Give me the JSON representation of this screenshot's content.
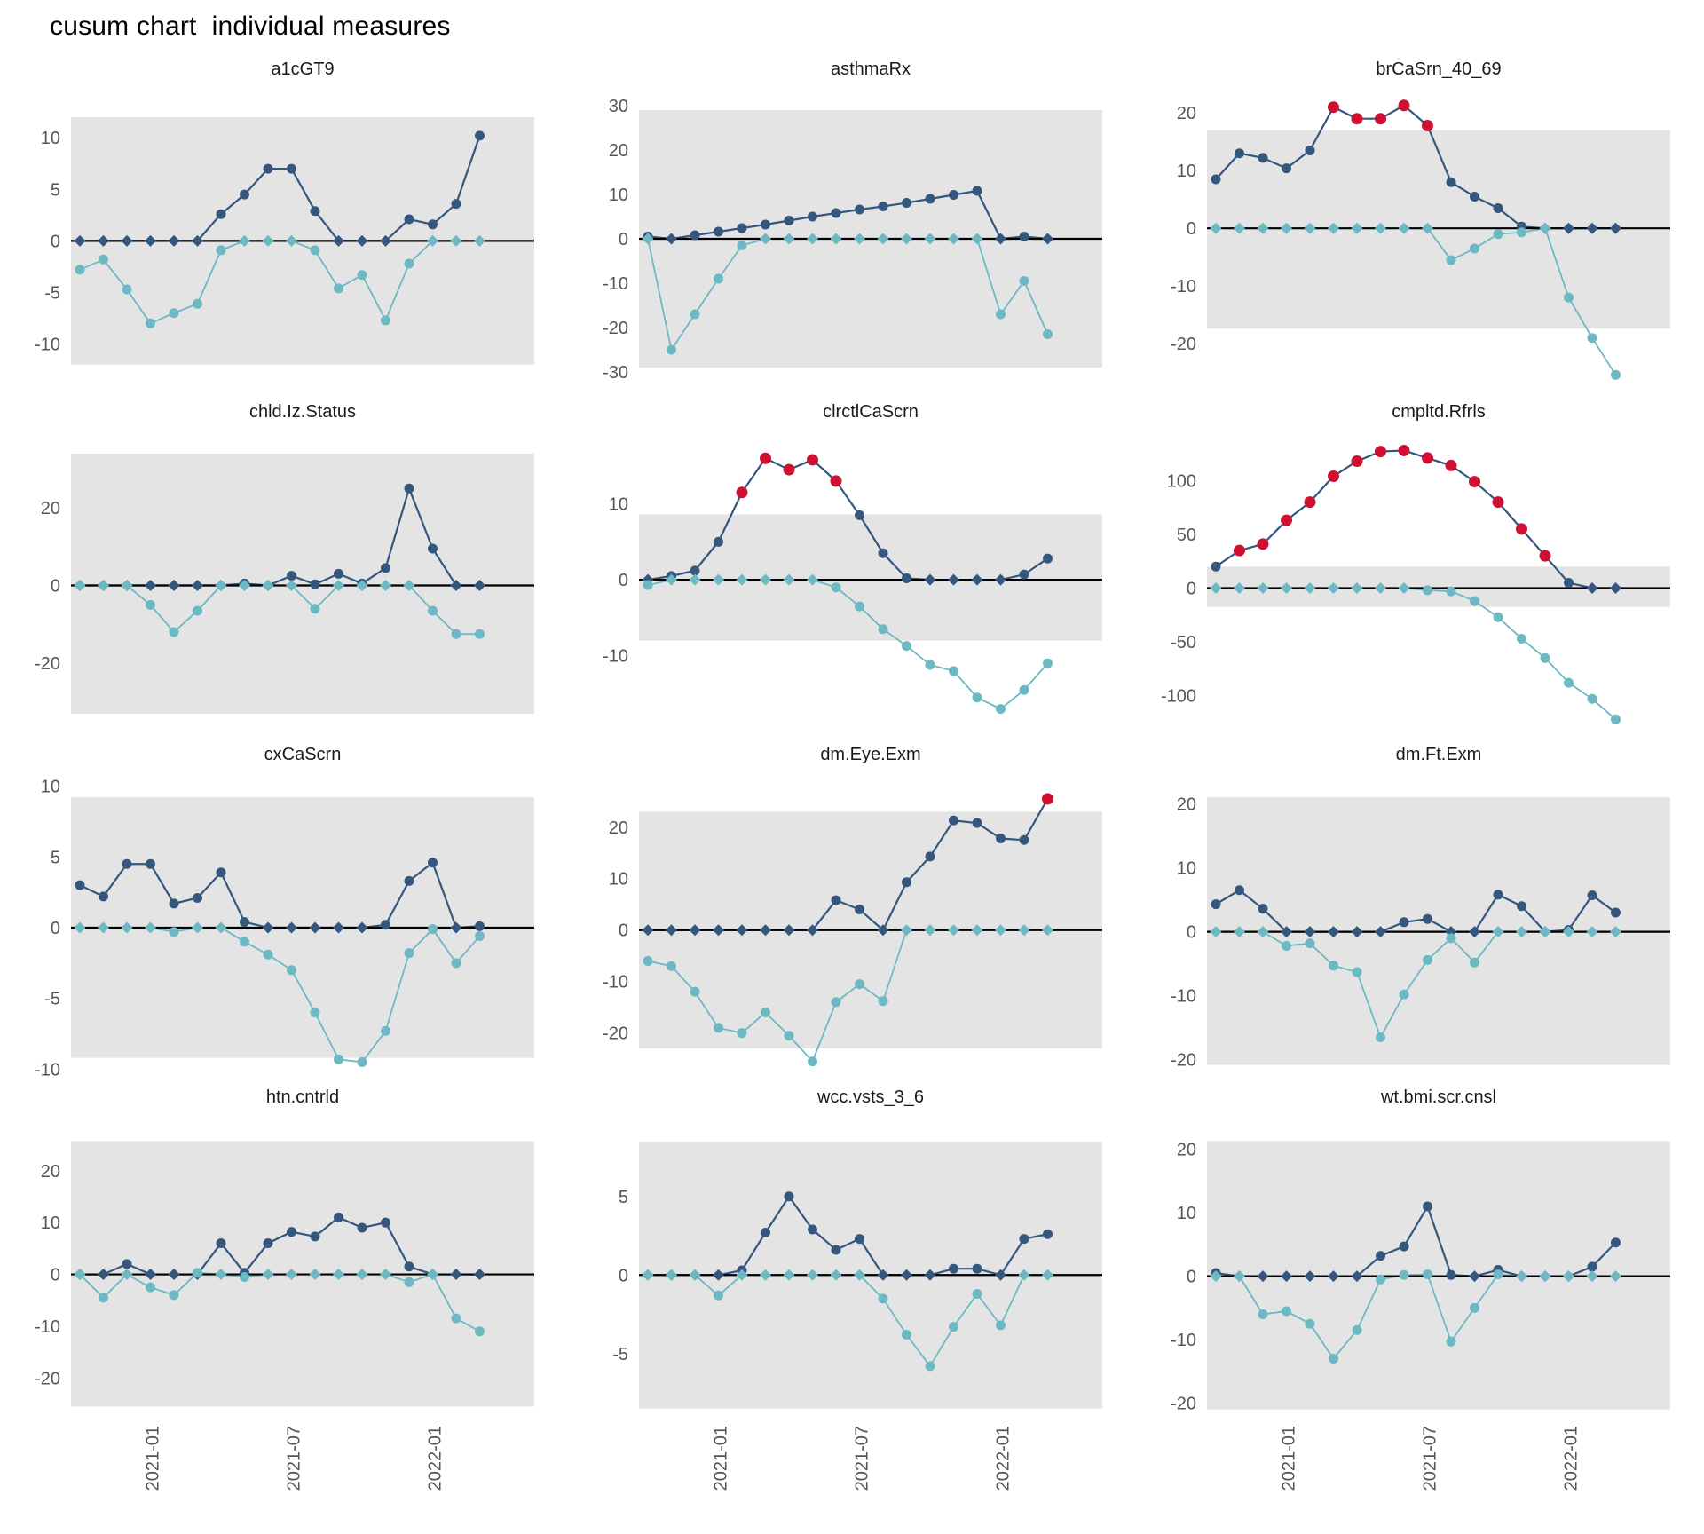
{
  "title": "cusum chart  individual measures",
  "colors": {
    "upper_series": "#35577e",
    "lower_series": "#6cb9c4",
    "signal": "#cc1133",
    "band": "#e4e4e4",
    "zero_line": "#000000",
    "tick_label": "#555555",
    "panel_title": "#1a1a1a"
  },
  "x_axis": {
    "n_points": 18,
    "tick_indices": [
      3,
      9,
      15
    ],
    "tick_labels": [
      "2021-01",
      "2021-07",
      "2022-01"
    ]
  },
  "chart_data": [
    {
      "type": "line",
      "title": "a1cGT9",
      "yticks": [
        10,
        5,
        0,
        -5,
        -10
      ],
      "ylim": [
        -14.0,
        15.1
      ],
      "band": [
        -12,
        12
      ],
      "series": [
        {
          "name": "cusum_upper",
          "color_key": "upper_series",
          "values": [
            0,
            0,
            0,
            0,
            0,
            0,
            2.6,
            4.5,
            7,
            7,
            2.9,
            0,
            0,
            0,
            2.1,
            1.6,
            3.6,
            10.2
          ],
          "signal_indices": []
        },
        {
          "name": "cusum_lower",
          "color_key": "lower_series",
          "values": [
            -2.8,
            -1.8,
            -4.7,
            -8,
            -7,
            -6.1,
            -0.9,
            0,
            0,
            0,
            -0.9,
            -4.6,
            -3.3,
            -7.7,
            -2.2,
            0,
            0,
            0
          ],
          "signal_indices": []
        }
      ]
    },
    {
      "type": "line",
      "title": "asthmaRx",
      "yticks": [
        30,
        20,
        10,
        0,
        -10,
        -20,
        -30
      ],
      "ylim": [
        -33,
        34.6
      ],
      "band": [
        -29,
        29
      ],
      "series": [
        {
          "name": "cusum_upper",
          "color_key": "upper_series",
          "values": [
            0.5,
            0,
            0.8,
            1.6,
            2.4,
            3.2,
            4.1,
            5,
            5.8,
            6.6,
            7.3,
            8.1,
            9,
            9.9,
            10.8,
            0,
            0.5,
            0
          ],
          "signal_indices": []
        },
        {
          "name": "cusum_lower",
          "color_key": "lower_series",
          "values": [
            0,
            -25,
            -17,
            -9,
            -1.5,
            0,
            0,
            0,
            0,
            0,
            0,
            0,
            0,
            0,
            0,
            -17,
            -9.5,
            -21.5
          ],
          "signal_indices": []
        }
      ]
    },
    {
      "type": "line",
      "title": "brCaSrn_40_69",
      "yticks": [
        20,
        10,
        0,
        -10,
        -20
      ],
      "ylim": [
        -27.2,
        24.8
      ],
      "band": [
        -17.4,
        17
      ],
      "series": [
        {
          "name": "cusum_upper",
          "color_key": "upper_series",
          "values": [
            8.5,
            13,
            12.2,
            10.4,
            13.5,
            21,
            19,
            19,
            21.3,
            17.8,
            8,
            5.5,
            3.5,
            0.3,
            0,
            0,
            0,
            0
          ],
          "signal_indices": [
            5,
            6,
            7,
            8,
            9
          ]
        },
        {
          "name": "cusum_lower",
          "color_key": "lower_series",
          "values": [
            0,
            0,
            0,
            0,
            0,
            0,
            0,
            0,
            0,
            0,
            -5.5,
            -3.5,
            -1,
            -0.7,
            0,
            -12,
            -19,
            -25.4
          ],
          "signal_indices": []
        }
      ]
    },
    {
      "type": "line",
      "title": "chld.Iz.Status",
      "yticks": [
        20,
        0,
        -20
      ],
      "ylim": [
        -36.7,
        40.6
      ],
      "band": [
        -33,
        34
      ],
      "series": [
        {
          "name": "cusum_upper",
          "color_key": "upper_series",
          "values": [
            0,
            0,
            0,
            0,
            0,
            0,
            0,
            0.5,
            0,
            2.5,
            0.3,
            3,
            0.5,
            4.5,
            25,
            9.5,
            0,
            0
          ],
          "signal_indices": []
        },
        {
          "name": "cusum_lower",
          "color_key": "lower_series",
          "values": [
            0,
            0,
            0,
            -5,
            -12,
            -6.5,
            0,
            0,
            0,
            0,
            -6,
            0,
            0,
            0,
            0,
            -6.5,
            -12.5,
            -12.5
          ],
          "signal_indices": []
        }
      ]
    },
    {
      "type": "line",
      "title": "clrctlCaScrn",
      "yticks": [
        10,
        0,
        -10
      ],
      "ylim": [
        -19.5,
        20
      ],
      "band": [
        -8,
        8.6
      ],
      "series": [
        {
          "name": "cusum_upper",
          "color_key": "upper_series",
          "values": [
            0,
            0.5,
            1.2,
            5,
            11.5,
            16,
            14.5,
            15.8,
            13,
            8.5,
            3.5,
            0.2,
            0,
            0,
            0,
            0,
            0.7,
            2.8
          ],
          "signal_indices": [
            4,
            5,
            6,
            7,
            8
          ]
        },
        {
          "name": "cusum_lower",
          "color_key": "lower_series",
          "values": [
            -0.7,
            0,
            0,
            0,
            0,
            0,
            0,
            0,
            -1,
            -3.5,
            -6.5,
            -8.7,
            -11.2,
            -12,
            -15.5,
            -17,
            -14.5,
            -11
          ],
          "signal_indices": []
        }
      ]
    },
    {
      "type": "line",
      "title": "cmpltd.Rfrls",
      "yticks": [
        100,
        50,
        0,
        -50,
        -100
      ],
      "ylim": [
        -130,
        149
      ],
      "band": [
        -17.5,
        20
      ],
      "series": [
        {
          "name": "cusum_upper",
          "color_key": "upper_series",
          "values": [
            20,
            35,
            41,
            63,
            80,
            104,
            118,
            127,
            128,
            121,
            114,
            99,
            80,
            55,
            30,
            5,
            0,
            0
          ],
          "signal_indices": [
            1,
            2,
            3,
            4,
            5,
            6,
            7,
            8,
            9,
            10,
            11,
            12,
            13,
            14
          ]
        },
        {
          "name": "cusum_lower",
          "color_key": "lower_series",
          "values": [
            0,
            0,
            0,
            0,
            0,
            0,
            0,
            0,
            0,
            -2,
            -3,
            -12,
            -27,
            -47,
            -65,
            -88,
            -103,
            -122
          ],
          "signal_indices": []
        }
      ]
    },
    {
      "type": "line",
      "title": "cxCaScrn",
      "yticks": [
        10,
        5,
        0,
        -5,
        -10
      ],
      "ylim": [
        -10.1,
        11.1
      ],
      "band": [
        -9.2,
        9.2
      ],
      "series": [
        {
          "name": "cusum_upper",
          "color_key": "upper_series",
          "values": [
            3,
            2.2,
            4.5,
            4.5,
            1.7,
            2.1,
            3.9,
            0.4,
            0,
            0,
            0,
            0,
            0,
            0.2,
            3.3,
            4.6,
            0,
            0.1
          ],
          "signal_indices": []
        },
        {
          "name": "cusum_lower",
          "color_key": "lower_series",
          "values": [
            0,
            0,
            0,
            0,
            -0.3,
            0,
            0,
            -1,
            -1.9,
            -3,
            -6,
            -9.3,
            -9.5,
            -7.3,
            -1.8,
            -0.1,
            -2.5,
            -0.6
          ],
          "signal_indices": []
        }
      ]
    },
    {
      "type": "line",
      "title": "dm.Eye.Exm",
      "yticks": [
        20,
        10,
        0,
        -10,
        -20
      ],
      "ylim": [
        -27.3,
        31
      ],
      "band": [
        -23,
        23
      ],
      "series": [
        {
          "name": "cusum_upper",
          "color_key": "upper_series",
          "values": [
            0,
            0,
            0,
            0,
            0,
            0,
            0,
            0,
            5.8,
            4,
            0,
            9.3,
            14.3,
            21.3,
            20.8,
            17.8,
            17.5,
            25.5
          ],
          "signal_indices": [
            17
          ]
        },
        {
          "name": "cusum_lower",
          "color_key": "lower_series",
          "values": [
            -6,
            -7,
            -12,
            -19,
            -20,
            -16,
            -20.5,
            -25.5,
            -14,
            -10.5,
            -13.8,
            0,
            0,
            0,
            0,
            0,
            0,
            0
          ],
          "signal_indices": []
        }
      ]
    },
    {
      "type": "line",
      "title": "dm.Ft.Exm",
      "yticks": [
        20,
        10,
        0,
        -10,
        -20
      ],
      "ylim": [
        -21.7,
        25.2
      ],
      "band": [
        -20.8,
        21
      ],
      "series": [
        {
          "name": "cusum_upper",
          "color_key": "upper_series",
          "values": [
            4.3,
            6.5,
            3.6,
            0,
            0,
            0,
            0,
            0,
            1.5,
            2,
            0,
            0,
            5.8,
            4,
            0,
            0.3,
            5.7,
            3
          ],
          "signal_indices": []
        },
        {
          "name": "cusum_lower",
          "color_key": "lower_series",
          "values": [
            0,
            0,
            0,
            -2.2,
            -1.8,
            -5.3,
            -6.3,
            -16.5,
            -9.8,
            -4.4,
            -1,
            -4.8,
            0,
            0,
            0,
            0,
            0,
            0
          ],
          "signal_indices": []
        }
      ]
    },
    {
      "type": "line",
      "title": "htn.cntrld",
      "yticks": [
        20,
        10,
        0,
        -10,
        -20
      ],
      "ylim": [
        -26.8,
        31.1
      ],
      "band": [
        -25.5,
        25.7
      ],
      "series": [
        {
          "name": "cusum_upper",
          "color_key": "upper_series",
          "values": [
            0,
            0,
            2,
            0,
            0,
            0,
            6,
            0.3,
            6,
            8.2,
            7.3,
            11,
            9,
            10,
            1.5,
            0,
            0,
            0
          ],
          "signal_indices": []
        },
        {
          "name": "cusum_lower",
          "color_key": "lower_series",
          "values": [
            0,
            -4.5,
            0,
            -2.5,
            -4,
            0.3,
            0,
            -0.5,
            0,
            0,
            0,
            0,
            0,
            0,
            -1.5,
            0,
            -8.5,
            -11
          ],
          "signal_indices": []
        }
      ]
    },
    {
      "type": "line",
      "title": "wcc.vsts_3_6",
      "yticks": [
        5,
        0,
        -5
      ],
      "ylim": [
        -8.8,
        10.3
      ],
      "band": [
        -8.5,
        8.5
      ],
      "series": [
        {
          "name": "cusum_upper",
          "color_key": "upper_series",
          "values": [
            0,
            0,
            0,
            0,
            0.3,
            2.7,
            5,
            2.9,
            1.6,
            2.3,
            0,
            0,
            0,
            0.4,
            0.4,
            0,
            2.3,
            2.6
          ],
          "signal_indices": []
        },
        {
          "name": "cusum_lower",
          "color_key": "lower_series",
          "values": [
            0,
            0,
            0,
            -1.3,
            0,
            0,
            0,
            0,
            0,
            0,
            -1.5,
            -3.8,
            -5.8,
            -3.3,
            -1.2,
            -3.2,
            0,
            0
          ],
          "signal_indices": []
        }
      ]
    },
    {
      "type": "line",
      "title": "wt.bmi.scr.cnsl",
      "yticks": [
        20,
        10,
        0,
        -10,
        -20
      ],
      "ylim": [
        -21.6,
        25.7
      ],
      "band": [
        -21,
        21.3
      ],
      "series": [
        {
          "name": "cusum_upper",
          "color_key": "upper_series",
          "values": [
            0.5,
            0,
            0,
            0,
            0,
            0,
            0,
            3.2,
            4.7,
            11,
            0.2,
            0,
            1,
            0,
            0,
            0,
            1.5,
            5.3
          ],
          "signal_indices": []
        },
        {
          "name": "cusum_lower",
          "color_key": "lower_series",
          "values": [
            0,
            0,
            -6,
            -5.5,
            -7.5,
            -13,
            -8.5,
            -0.5,
            0.2,
            0.3,
            -10.3,
            -5,
            0.3,
            0,
            0,
            0,
            0,
            0
          ],
          "signal_indices": []
        }
      ]
    }
  ]
}
